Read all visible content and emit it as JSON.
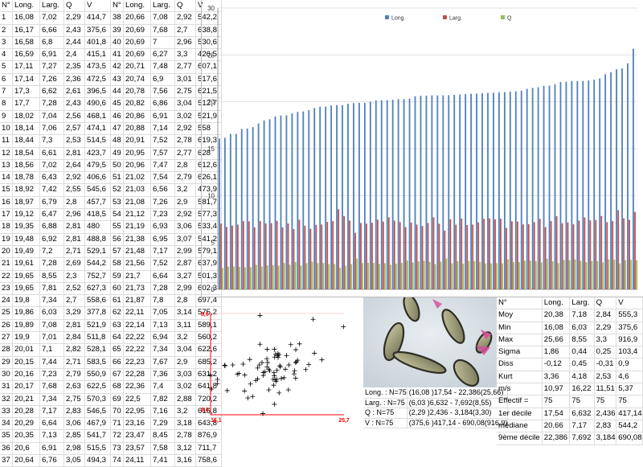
{
  "data_table": {
    "headers": [
      "N°",
      "Long.",
      "Larg.",
      "Q",
      "V"
    ],
    "rows": [
      [
        "1",
        "16,08",
        "7,02",
        "2,29",
        "414,7"
      ],
      [
        "2",
        "16,17",
        "6,66",
        "2,43",
        "375,6"
      ],
      [
        "3",
        "16,58",
        "6,8",
        "2,44",
        "401,8"
      ],
      [
        "4",
        "16,59",
        "6,91",
        "2,4",
        "415,1"
      ],
      [
        "5",
        "17,11",
        "7,27",
        "2,35",
        "473,5"
      ],
      [
        "6",
        "17,14",
        "7,26",
        "2,36",
        "472,5"
      ],
      [
        "7",
        "17,3",
        "6,62",
        "2,61",
        "396,5"
      ],
      [
        "8",
        "17,7",
        "7,28",
        "2,43",
        "490,6"
      ],
      [
        "9",
        "18,02",
        "7,04",
        "2,56",
        "468,1"
      ],
      [
        "10",
        "18,14",
        "7,06",
        "2,57",
        "474,1"
      ],
      [
        "11",
        "18,44",
        "7,3",
        "2,53",
        "514,5"
      ],
      [
        "12",
        "18,54",
        "6,61",
        "2,81",
        "423,7"
      ],
      [
        "13",
        "18,56",
        "7,02",
        "2,64",
        "479,5"
      ],
      [
        "14",
        "18,78",
        "6,43",
        "2,92",
        "406,6"
      ],
      [
        "15",
        "18,92",
        "7,42",
        "2,55",
        "545,6"
      ],
      [
        "16",
        "18,97",
        "6,79",
        "2,8",
        "457,7"
      ],
      [
        "17",
        "19,12",
        "6,47",
        "2,96",
        "418,5"
      ],
      [
        "18",
        "19,35",
        "6,88",
        "2,81",
        "480"
      ],
      [
        "19",
        "19,48",
        "6,92",
        "2,81",
        "488,8"
      ],
      [
        "20",
        "19,49",
        "7,2",
        "2,71",
        "529,1"
      ],
      [
        "21",
        "19,61",
        "7,28",
        "2,69",
        "544,2"
      ],
      [
        "22",
        "19,65",
        "8,55",
        "2,3",
        "752,7"
      ],
      [
        "23",
        "19,65",
        "7,81",
        "2,52",
        "627,3"
      ],
      [
        "24",
        "19,8",
        "7,34",
        "2,7",
        "558,6"
      ],
      [
        "25",
        "19,86",
        "6,03",
        "3,29",
        "377,8"
      ],
      [
        "26",
        "19,89",
        "7,08",
        "2,81",
        "521,9"
      ],
      [
        "27",
        "19,9",
        "7,01",
        "2,84",
        "511,8"
      ],
      [
        "28",
        "20,01",
        "7,1",
        "2,82",
        "528,1"
      ],
      [
        "29",
        "20,15",
        "7,44",
        "2,71",
        "583,5"
      ],
      [
        "30",
        "20,16",
        "7,23",
        "2,79",
        "550,9"
      ],
      [
        "31",
        "20,17",
        "7,68",
        "2,63",
        "622,5"
      ],
      [
        "32",
        "20,21",
        "7,34",
        "2,75",
        "570,3"
      ],
      [
        "33",
        "20,28",
        "7,17",
        "2,83",
        "546,5"
      ],
      [
        "34",
        "20,29",
        "6,64",
        "3,06",
        "467,9"
      ],
      [
        "35",
        "20,35",
        "7,13",
        "2,85",
        "541,7"
      ],
      [
        "36",
        "20,6",
        "6,91",
        "2,98",
        "515,5"
      ],
      [
        "37",
        "20,64",
        "6,76",
        "3,05",
        "494,3"
      ],
      [
        "38",
        "20,66",
        "7,08",
        "2,92",
        "542,2"
      ],
      [
        "39",
        "20,69",
        "7,68",
        "2,7",
        "638,8"
      ],
      [
        "40",
        "20,69",
        "7",
        "2,96",
        "530,6"
      ],
      [
        "41",
        "20,69",
        "6,27",
        "3,3",
        "426,5"
      ],
      [
        "42",
        "20,71",
        "7,48",
        "2,77",
        "607,1"
      ],
      [
        "43",
        "20,74",
        "6,9",
        "3,01",
        "517,6"
      ],
      [
        "44",
        "20,78",
        "7,56",
        "2,75",
        "621,5"
      ],
      [
        "45",
        "20,82",
        "6,86",
        "3,04",
        "512,7"
      ],
      [
        "46",
        "20,86",
        "6,91",
        "3,02",
        "521,9"
      ],
      [
        "47",
        "20,88",
        "7,14",
        "2,92",
        "558"
      ],
      [
        "48",
        "20,91",
        "7,52",
        "2,78",
        "619,3"
      ],
      [
        "49",
        "20,95",
        "7,57",
        "2,77",
        "628"
      ],
      [
        "50",
        "20,96",
        "7,47",
        "2,8",
        "612,6"
      ],
      [
        "51",
        "21,02",
        "7,54",
        "2,79",
        "626,1"
      ],
      [
        "52",
        "21,03",
        "6,56",
        "3,2",
        "473,9"
      ],
      [
        "53",
        "21,08",
        "7,26",
        "2,9",
        "581,7"
      ],
      [
        "54",
        "21,12",
        "7,23",
        "2,92",
        "577,3"
      ],
      [
        "55",
        "21,19",
        "6,93",
        "3,06",
        "533,4"
      ],
      [
        "56",
        "21,38",
        "6,95",
        "3,07",
        "541,2"
      ],
      [
        "57",
        "21,48",
        "7,17",
        "2,99",
        "579,1"
      ],
      [
        "58",
        "21,56",
        "7,52",
        "2,87",
        "637,9"
      ],
      [
        "59",
        "21,7",
        "6,64",
        "3,27",
        "501,3"
      ],
      [
        "60",
        "21,73",
        "7,28",
        "2,99",
        "602,3"
      ],
      [
        "61",
        "21,87",
        "7,8",
        "2,8",
        "697,4"
      ],
      [
        "62",
        "22,11",
        "7,05",
        "3,14",
        "575,2"
      ],
      [
        "63",
        "22,14",
        "7,13",
        "3,11",
        "589,1"
      ],
      [
        "64",
        "22,22",
        "6,94",
        "3,2",
        "560,2"
      ],
      [
        "65",
        "22,22",
        "7,34",
        "3,04",
        "622,6"
      ],
      [
        "66",
        "22,23",
        "7,67",
        "2,9",
        "685,2"
      ],
      [
        "67",
        "22,28",
        "7,36",
        "3,03",
        "631,2"
      ],
      [
        "68",
        "22,36",
        "7,4",
        "3,02",
        "641,8"
      ],
      [
        "69",
        "22,5",
        "7,82",
        "2,88",
        "720,2"
      ],
      [
        "70",
        "22,95",
        "7,16",
        "3,2",
        "616,8"
      ],
      [
        "71",
        "23,16",
        "7,29",
        "3,18",
        "643,8"
      ],
      [
        "72",
        "23,47",
        "8,45",
        "2,78",
        "876,9"
      ],
      [
        "73",
        "23,57",
        "7,58",
        "3,12",
        "711,7"
      ],
      [
        "74",
        "24,11",
        "7,41",
        "3,16",
        "758,6"
      ],
      [
        "75",
        "25,66",
        "8,26",
        "3,11",
        "916,9"
      ]
    ]
  },
  "chart_data": [
    {
      "type": "bar",
      "ylim": [
        0,
        30
      ],
      "yticks": [
        "0",
        "5",
        "10",
        "15",
        "20",
        "25",
        "30"
      ],
      "legend_position": "top",
      "legend": [
        "Long.",
        "Larg.",
        "Q"
      ],
      "colors": {
        "Long.": "#4f81bd",
        "Larg.": "#c0504d",
        "Q": "#9bbb59"
      },
      "series": [
        {
          "name": "Long.",
          "values": [
            16.08,
            16.17,
            16.58,
            16.59,
            17.11,
            17.14,
            17.3,
            17.7,
            18.02,
            18.14,
            18.44,
            18.54,
            18.56,
            18.78,
            18.92,
            18.97,
            19.12,
            19.35,
            19.48,
            19.49,
            19.61,
            19.65,
            19.65,
            19.8,
            19.86,
            19.89,
            19.9,
            20.01,
            20.15,
            20.16,
            20.17,
            20.21,
            20.28,
            20.29,
            20.35,
            20.6,
            20.64,
            20.66,
            20.69,
            20.69,
            20.69,
            20.71,
            20.74,
            20.78,
            20.82,
            20.86,
            20.88,
            20.91,
            20.95,
            20.96,
            21.02,
            21.03,
            21.08,
            21.12,
            21.19,
            21.38,
            21.48,
            21.56,
            21.7,
            21.73,
            21.87,
            22.11,
            22.14,
            22.22,
            22.22,
            22.23,
            22.28,
            22.36,
            22.5,
            22.95,
            23.16,
            23.47,
            23.57,
            24.11,
            25.66
          ]
        },
        {
          "name": "Larg.",
          "values": [
            7.02,
            6.66,
            6.8,
            6.91,
            7.27,
            7.26,
            6.62,
            7.28,
            7.04,
            7.06,
            7.3,
            6.61,
            7.02,
            6.43,
            7.42,
            6.79,
            6.47,
            6.88,
            6.92,
            7.2,
            7.28,
            8.55,
            7.81,
            7.34,
            6.03,
            7.08,
            7.01,
            7.1,
            7.44,
            7.23,
            7.68,
            7.34,
            7.17,
            6.64,
            7.13,
            6.91,
            6.76,
            7.08,
            7.68,
            7,
            6.27,
            7.48,
            6.9,
            7.56,
            6.86,
            6.91,
            7.14,
            7.52,
            7.57,
            7.47,
            7.54,
            6.56,
            7.26,
            7.23,
            6.93,
            6.95,
            7.17,
            7.52,
            6.64,
            7.28,
            7.8,
            7.05,
            7.13,
            6.94,
            7.34,
            7.67,
            7.36,
            7.4,
            7.82,
            7.16,
            7.29,
            8.45,
            7.58,
            7.41,
            8.26
          ]
        },
        {
          "name": "Q",
          "values": [
            2.29,
            2.43,
            2.44,
            2.4,
            2.35,
            2.36,
            2.61,
            2.43,
            2.56,
            2.57,
            2.53,
            2.81,
            2.64,
            2.92,
            2.55,
            2.8,
            2.96,
            2.81,
            2.81,
            2.71,
            2.69,
            2.3,
            2.52,
            2.7,
            3.29,
            2.81,
            2.84,
            2.82,
            2.71,
            2.79,
            2.63,
            2.75,
            2.83,
            3.06,
            2.85,
            2.98,
            3.05,
            2.92,
            2.7,
            2.96,
            3.3,
            2.77,
            3.01,
            2.75,
            3.04,
            3.02,
            2.92,
            2.78,
            2.77,
            2.8,
            2.79,
            3.2,
            2.9,
            2.92,
            3.06,
            3.07,
            2.99,
            2.87,
            3.27,
            2.99,
            2.8,
            3.14,
            3.11,
            3.2,
            3.04,
            2.9,
            3.03,
            3.02,
            2.88,
            3.2,
            3.18,
            2.78,
            3.12,
            3.16,
            3.11
          ]
        }
      ]
    },
    {
      "type": "scatter",
      "x_min_label": "16,1",
      "x_max_label": "25,7",
      "y_min_label": "6,0",
      "y_max_label": "8,6",
      "xlim": [
        16.1,
        25.7
      ],
      "ylim": [
        6.0,
        8.6
      ],
      "marker": "+",
      "axis_color": "#ff0000"
    }
  ],
  "ranges_table": [
    [
      "Long. : N=75",
      "(16,08 )17,54 - 22,386(25,66)"
    ],
    [
      "Larg. : N=75",
      "(6,03 )6,632 - 7,692(8,55)"
    ],
    [
      "Q : N=75",
      "(2,29 )2,436 - 3,184(3,30)"
    ],
    [
      "V : N=75",
      "(375,6 )417,14 - 690,08(916,9)"
    ]
  ],
  "stats_table": {
    "headers": [
      "N°",
      "Long.",
      "Larg.",
      "Q",
      "V"
    ],
    "rows": [
      [
        "Moy",
        "20,38",
        "7,18",
        "2,84",
        "555,3"
      ],
      [
        "Min",
        "16,08",
        "6,03",
        "2,29",
        "375,6"
      ],
      [
        "Max",
        "25,66",
        "8,55",
        "3,3",
        "916,9"
      ],
      [
        "Sigma",
        "1,86",
        "0,44",
        "0,25",
        "103,4"
      ],
      [
        "Diss",
        "-0,12",
        "0,45",
        "-0,31",
        "0,9"
      ],
      [
        "Kurt",
        "3,36",
        "4,18",
        "2,53",
        "4,6"
      ],
      [
        "m/s",
        "10,97",
        "16,22",
        "11,51",
        "5,37"
      ],
      [
        "Effectif =",
        "75",
        "75",
        "75",
        "75"
      ],
      [
        "1er décile",
        "17,54",
        "6,632",
        "2,436",
        "417,14"
      ],
      [
        "médiane",
        "20,66",
        "7,17",
        "2,83",
        "544,2"
      ],
      [
        "9ème décile",
        "22,386",
        "7,692",
        "3,184",
        "690,08"
      ]
    ]
  }
}
